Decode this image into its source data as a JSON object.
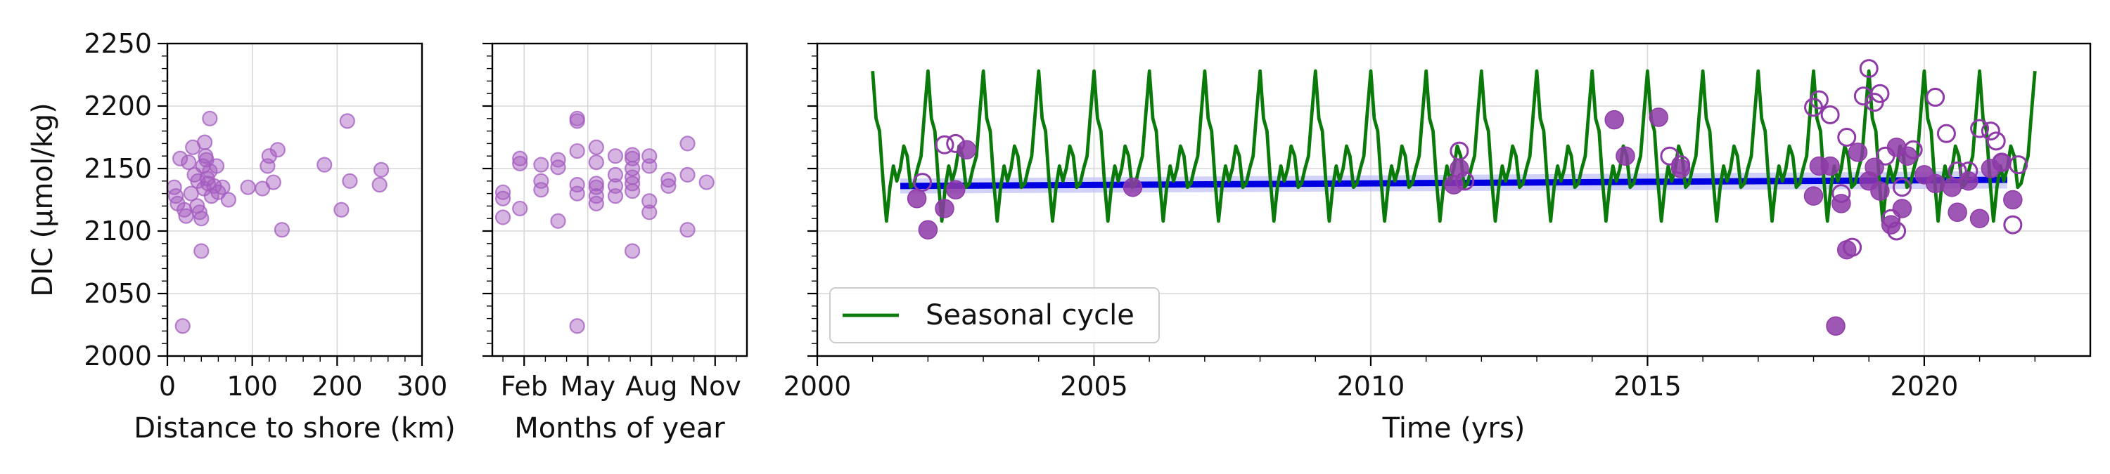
{
  "chart_data": [
    {
      "type": "scatter",
      "title": "",
      "xlabel": "Distance to shore (km)",
      "ylabel": "DIC (µmol/kg)",
      "xlim": [
        0,
        300
      ],
      "ylim": [
        2000,
        2250
      ],
      "x_ticks": [
        0,
        100,
        200,
        300
      ],
      "y_ticks": [
        2000,
        2050,
        2100,
        2150,
        2200,
        2250
      ],
      "grid": true,
      "marker_color": "#a35bbf",
      "points": [
        [
          8,
          2135
        ],
        [
          10,
          2128
        ],
        [
          12,
          2122
        ],
        [
          15,
          2158
        ],
        [
          18,
          2024
        ],
        [
          20,
          2117
        ],
        [
          22,
          2112
        ],
        [
          25,
          2155
        ],
        [
          28,
          2130
        ],
        [
          30,
          2167
        ],
        [
          32,
          2145
        ],
        [
          35,
          2120
        ],
        [
          36,
          2140
        ],
        [
          38,
          2115
        ],
        [
          40,
          2110
        ],
        [
          40,
          2084
        ],
        [
          42,
          2152
        ],
        [
          43,
          2134
        ],
        [
          44,
          2171
        ],
        [
          45,
          2160
        ],
        [
          46,
          2157
        ],
        [
          47,
          2142
        ],
        [
          48,
          2138
        ],
        [
          50,
          2148
        ],
        [
          50,
          2190
        ],
        [
          52,
          2128
        ],
        [
          55,
          2136
        ],
        [
          58,
          2152
        ],
        [
          60,
          2131
        ],
        [
          65,
          2135
        ],
        [
          72,
          2125
        ],
        [
          95,
          2135
        ],
        [
          112,
          2134
        ],
        [
          118,
          2152
        ],
        [
          120,
          2160
        ],
        [
          125,
          2139
        ],
        [
          130,
          2165
        ],
        [
          135,
          2101
        ],
        [
          185,
          2153
        ],
        [
          205,
          2117
        ],
        [
          212,
          2188
        ],
        [
          215,
          2140
        ],
        [
          250,
          2137
        ],
        [
          252,
          2149
        ]
      ]
    },
    {
      "type": "scatter",
      "title": "",
      "xlabel": "Months of year",
      "ylabel": "",
      "xlim": [
        0.5,
        12.5
      ],
      "ylim": [
        2000,
        2250
      ],
      "x_ticks": [
        2,
        5,
        8,
        11
      ],
      "x_tick_labels": [
        "Feb",
        "May",
        "Aug",
        "Nov"
      ],
      "y_ticks": [
        2000,
        2050,
        2100,
        2150,
        2200,
        2250
      ],
      "grid": true,
      "marker_color": "#a35bbf",
      "points": [
        [
          1.0,
          2111
        ],
        [
          1.0,
          2126
        ],
        [
          1.0,
          2131
        ],
        [
          1.8,
          2118
        ],
        [
          1.8,
          2154
        ],
        [
          1.8,
          2158
        ],
        [
          2.8,
          2140
        ],
        [
          2.8,
          2133
        ],
        [
          2.8,
          2153
        ],
        [
          3.6,
          2108
        ],
        [
          3.6,
          2151
        ],
        [
          3.6,
          2157
        ],
        [
          4.5,
          2024
        ],
        [
          4.5,
          2130
        ],
        [
          4.5,
          2137
        ],
        [
          4.5,
          2164
        ],
        [
          4.5,
          2188
        ],
        [
          4.5,
          2190
        ],
        [
          5.4,
          2122
        ],
        [
          5.4,
          2128
        ],
        [
          5.4,
          2135
        ],
        [
          5.4,
          2138
        ],
        [
          5.4,
          2155
        ],
        [
          5.4,
          2167
        ],
        [
          6.3,
          2128
        ],
        [
          6.3,
          2136
        ],
        [
          6.3,
          2145
        ],
        [
          6.3,
          2160
        ],
        [
          7.1,
          2084
        ],
        [
          7.1,
          2132
        ],
        [
          7.1,
          2138
        ],
        [
          7.1,
          2143
        ],
        [
          7.1,
          2150
        ],
        [
          7.1,
          2158
        ],
        [
          7.1,
          2161
        ],
        [
          7.9,
          2115
        ],
        [
          7.9,
          2124
        ],
        [
          7.9,
          2152
        ],
        [
          7.9,
          2160
        ],
        [
          8.8,
          2136
        ],
        [
          8.8,
          2141
        ],
        [
          9.7,
          2101
        ],
        [
          9.7,
          2145
        ],
        [
          9.7,
          2170
        ],
        [
          10.6,
          2139
        ]
      ]
    },
    {
      "type": "line",
      "title": "",
      "xlabel": "Time (yrs)",
      "ylabel": "",
      "xlim": [
        2000,
        2023
      ],
      "ylim": [
        2000,
        2250
      ],
      "x_ticks": [
        2000,
        2005,
        2010,
        2015,
        2020
      ],
      "y_ticks": [
        2000,
        2050,
        2100,
        2150,
        2200,
        2250
      ],
      "grid": true,
      "legend": {
        "placement": "lower-left",
        "entries": [
          "Seasonal cycle"
        ]
      },
      "series": [
        {
          "name": "Seasonal cycle",
          "color": "#0a7a0a",
          "x_start": 2001.0,
          "x_end": 2022.0,
          "cycle_x": [
            0,
            0.0625,
            0.125,
            0.1875,
            0.25,
            0.3125,
            0.375,
            0.4375,
            0.5,
            0.5625,
            0.625,
            0.6875,
            0.75,
            0.8125,
            0.875,
            0.9375,
            1.0
          ],
          "cycle_y": [
            2228,
            2190,
            2180,
            2140,
            2108,
            2135,
            2152,
            2140,
            2150,
            2168,
            2160,
            2135,
            2138,
            2150,
            2160,
            2195,
            2228
          ]
        },
        {
          "type": "trend",
          "color": "#0000e0",
          "band_color": "#bfbff5",
          "x": [
            2001.5,
            2021.5
          ],
          "y": [
            2136,
            2141
          ],
          "band_y_low": [
            2130,
            2134
          ],
          "band_y_high": [
            2142,
            2148
          ]
        },
        {
          "type": "scatter",
          "style": "filled",
          "color": "#8e3aa8",
          "points": [
            [
              2001.8,
              2126
            ],
            [
              2002.0,
              2101
            ],
            [
              2002.3,
              2118
            ],
            [
              2002.5,
              2133
            ],
            [
              2002.7,
              2165
            ],
            [
              2005.7,
              2135
            ],
            [
              2011.5,
              2137
            ],
            [
              2011.6,
              2150
            ],
            [
              2014.4,
              2189
            ],
            [
              2014.6,
              2160
            ],
            [
              2015.2,
              2191
            ],
            [
              2015.6,
              2150
            ],
            [
              2018.0,
              2128
            ],
            [
              2018.1,
              2152
            ],
            [
              2018.3,
              2152
            ],
            [
              2018.4,
              2024
            ],
            [
              2018.5,
              2122
            ],
            [
              2018.6,
              2085
            ],
            [
              2018.8,
              2163
            ],
            [
              2019.0,
              2140
            ],
            [
              2019.1,
              2151
            ],
            [
              2019.2,
              2132
            ],
            [
              2019.4,
              2105
            ],
            [
              2019.5,
              2167
            ],
            [
              2019.6,
              2118
            ],
            [
              2019.7,
              2160
            ],
            [
              2020.0,
              2145
            ],
            [
              2020.2,
              2138
            ],
            [
              2020.5,
              2135
            ],
            [
              2020.6,
              2115
            ],
            [
              2020.8,
              2140
            ],
            [
              2021.0,
              2110
            ],
            [
              2021.2,
              2150
            ],
            [
              2021.4,
              2155
            ],
            [
              2021.6,
              2125
            ]
          ]
        },
        {
          "type": "scatter",
          "style": "hollow",
          "color": "#8e3aa8",
          "points": [
            [
              2001.9,
              2139
            ],
            [
              2002.3,
              2169
            ],
            [
              2002.5,
              2170
            ],
            [
              2011.6,
              2164
            ],
            [
              2011.7,
              2140
            ],
            [
              2015.4,
              2160
            ],
            [
              2015.6,
              2153
            ],
            [
              2018.0,
              2199
            ],
            [
              2018.1,
              2205
            ],
            [
              2018.3,
              2193
            ],
            [
              2018.5,
              2130
            ],
            [
              2018.6,
              2175
            ],
            [
              2018.7,
              2087
            ],
            [
              2018.9,
              2208
            ],
            [
              2019.0,
              2230
            ],
            [
              2019.1,
              2203
            ],
            [
              2019.2,
              2210
            ],
            [
              2019.3,
              2160
            ],
            [
              2019.4,
              2110
            ],
            [
              2019.5,
              2100
            ],
            [
              2019.6,
              2135
            ],
            [
              2019.8,
              2165
            ],
            [
              2020.2,
              2207
            ],
            [
              2020.4,
              2178
            ],
            [
              2020.6,
              2148
            ],
            [
              2020.8,
              2148
            ],
            [
              2021.0,
              2182
            ],
            [
              2021.2,
              2180
            ],
            [
              2021.3,
              2172
            ],
            [
              2021.4,
              2155
            ],
            [
              2021.6,
              2105
            ],
            [
              2021.7,
              2153
            ]
          ]
        }
      ]
    }
  ]
}
